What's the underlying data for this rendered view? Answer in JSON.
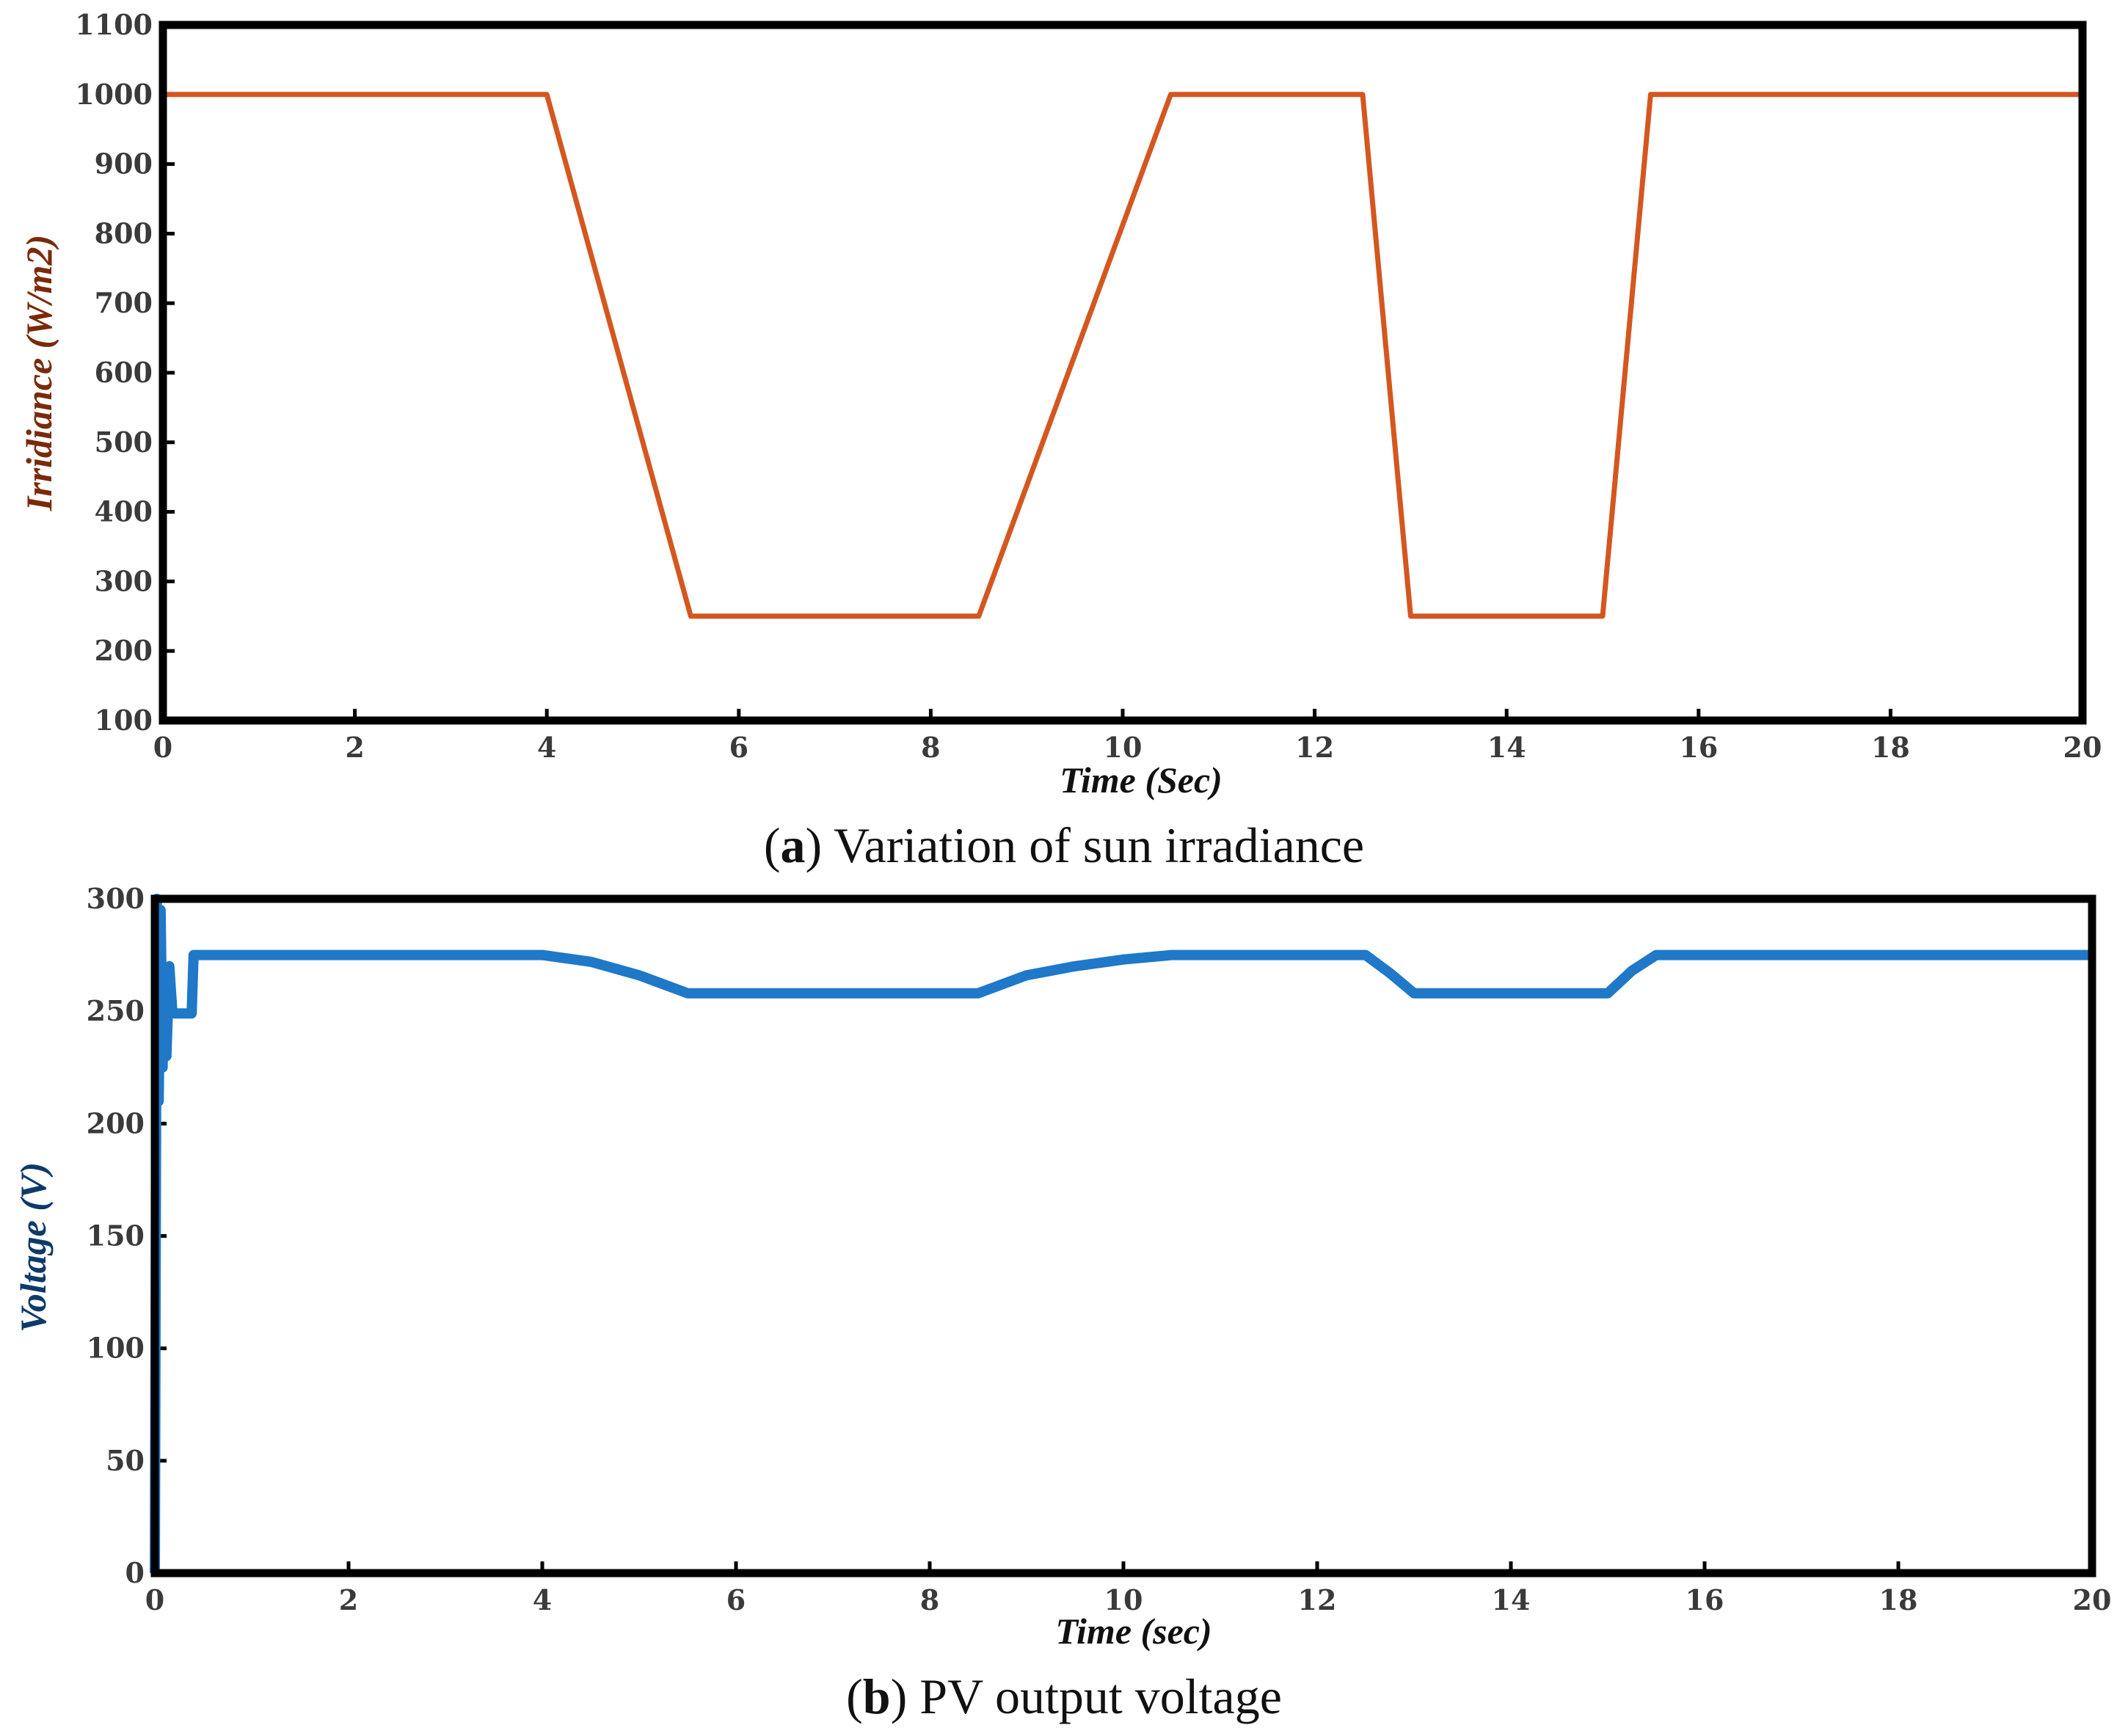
{
  "chart_data": [
    {
      "id": "a",
      "type": "line",
      "caption_letter": "a",
      "caption_text": "Variation of sun irradiance",
      "xlabel": "Time (Sec)",
      "ylabel": "Irridiance (W/m2)",
      "xlim": [
        0,
        20
      ],
      "ylim": [
        100,
        1100
      ],
      "xticks": [
        0,
        2,
        4,
        6,
        8,
        10,
        12,
        14,
        16,
        18,
        20
      ],
      "yticks": [
        100,
        200,
        300,
        400,
        500,
        600,
        700,
        800,
        900,
        1000,
        1100
      ],
      "grid": false,
      "series": [
        {
          "name": "Irradiance",
          "color": "#d4571f",
          "x": [
            0,
            4,
            5.5,
            8.5,
            10.5,
            12.5,
            13,
            15,
            15.5,
            20
          ],
          "y": [
            1000,
            1000,
            250,
            250,
            1000,
            1000,
            250,
            250,
            1000,
            1000
          ]
        }
      ]
    },
    {
      "id": "b",
      "type": "line",
      "caption_letter": "b",
      "caption_text": "PV output voltage",
      "xlabel": "Time (sec)",
      "ylabel": "Voltage (V)",
      "xlim": [
        0,
        20
      ],
      "ylim": [
        0,
        300
      ],
      "xticks": [
        0,
        2,
        4,
        6,
        8,
        10,
        12,
        14,
        16,
        18,
        20
      ],
      "yticks": [
        0,
        50,
        100,
        150,
        200,
        250,
        300
      ],
      "grid": false,
      "series": [
        {
          "name": "PV voltage",
          "color": "#1f78c8",
          "x": [
            0,
            0.02,
            0.04,
            0.06,
            0.08,
            0.1,
            0.12,
            0.15,
            0.18,
            0.2,
            0.25,
            0.3,
            0.35,
            0.38,
            0.4,
            0.42,
            0.45,
            1,
            4,
            4.5,
            5,
            5.5,
            6,
            8.5,
            9,
            9.5,
            10,
            10.5,
            12.5,
            12.75,
            13,
            15,
            15.25,
            15.5,
            20
          ],
          "y": [
            0,
            300,
            210,
            295,
            225,
            265,
            230,
            270,
            250,
            249,
            249,
            249,
            249,
            249,
            275,
            275,
            275,
            275,
            275,
            272,
            266,
            258,
            258,
            258,
            266,
            270,
            273,
            275,
            275,
            267,
            258,
            258,
            268,
            275,
            275
          ]
        }
      ]
    }
  ]
}
